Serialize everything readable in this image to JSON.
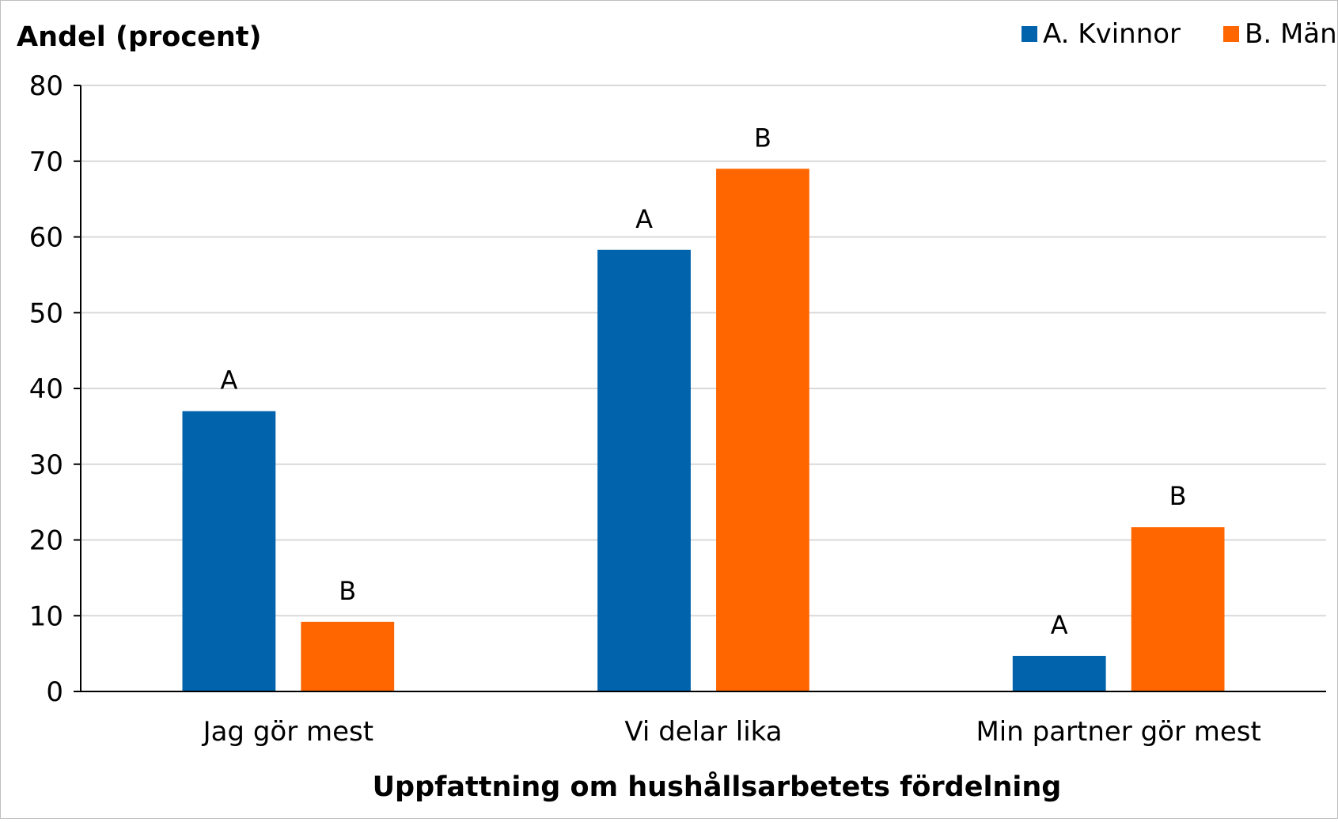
{
  "chart_data": {
    "type": "bar",
    "ylabel": "Andel (procent)",
    "xlabel": "Uppfattning om hushållsarbetets fördelning",
    "ylim": [
      0,
      80
    ],
    "yticks": [
      0,
      10,
      20,
      30,
      40,
      50,
      60,
      70,
      80
    ],
    "grid": true,
    "legend_position": "top-right",
    "categories": [
      "Jag gör mest",
      "Vi delar lika",
      "Min partner gör mest"
    ],
    "series": [
      {
        "name": "A. Kvinnor",
        "color": "#0063ac",
        "values": [
          37,
          58.3,
          4.7
        ],
        "labels": [
          "A",
          "A",
          "A"
        ]
      },
      {
        "name": "B. Män",
        "color": "#ff6600",
        "values": [
          9.2,
          69,
          21.7
        ],
        "labels": [
          "B",
          "B",
          "B"
        ]
      }
    ]
  }
}
